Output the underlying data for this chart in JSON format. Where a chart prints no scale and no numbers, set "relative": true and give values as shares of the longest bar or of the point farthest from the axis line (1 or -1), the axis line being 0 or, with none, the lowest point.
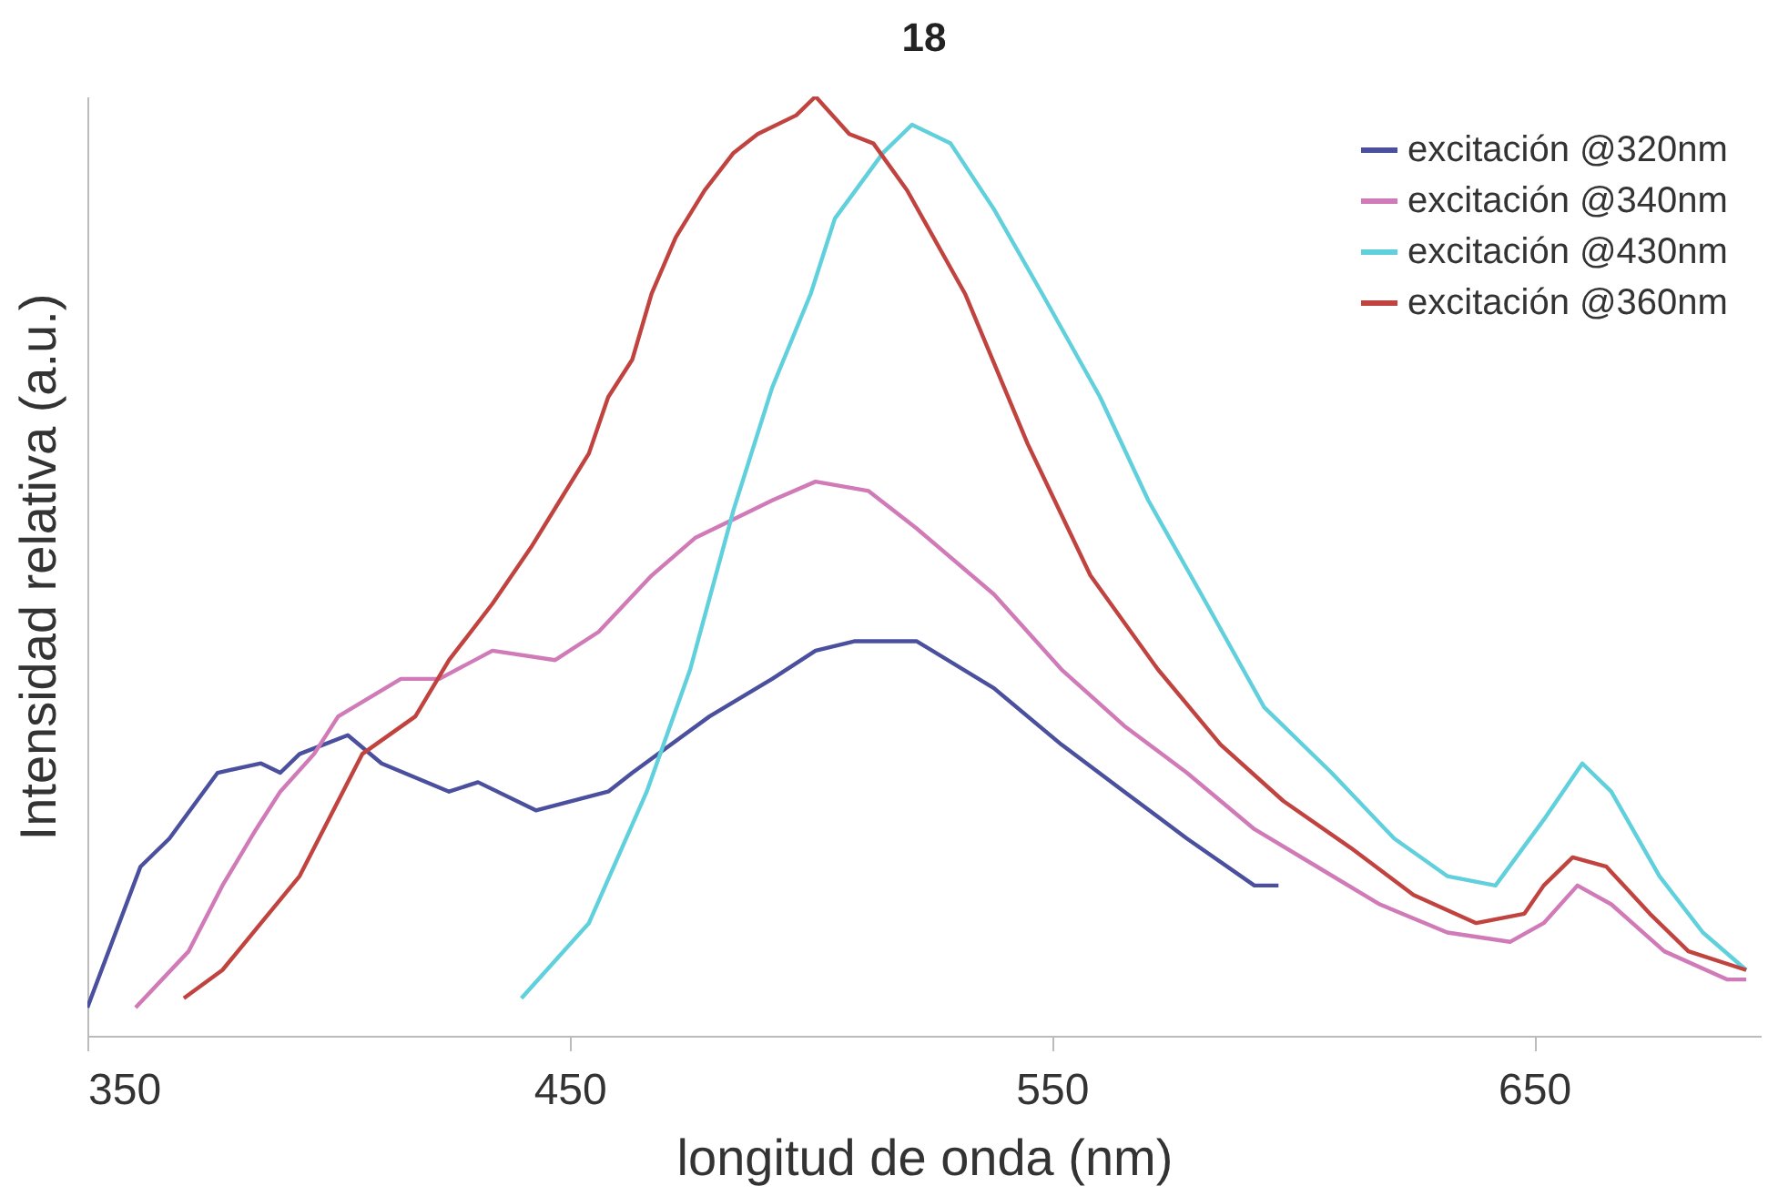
{
  "chart_data": {
    "type": "line",
    "title": "18",
    "xlabel": "longitud de onda (nm)",
    "ylabel": "Intensidad relativa (a.u.)",
    "relative": true,
    "xlim": [
      350,
      697
    ],
    "xticks": [
      350,
      450,
      550,
      650
    ],
    "grid": false,
    "legend": "top right",
    "marker": "none",
    "line_style": "solid",
    "series": [
      {
        "name": "excitación @320nm",
        "color": "#4a4f9e",
        "x": [
          350,
          361,
          367,
          377,
          386,
          390,
          394,
          404,
          411,
          425,
          431,
          443,
          458,
          463,
          479,
          492,
          501,
          509,
          522,
          538,
          552,
          565,
          578,
          592,
          597
        ],
        "values": [
          0.03,
          0.18,
          0.21,
          0.28,
          0.29,
          0.28,
          0.3,
          0.32,
          0.29,
          0.26,
          0.27,
          0.24,
          0.26,
          0.28,
          0.34,
          0.38,
          0.41,
          0.42,
          0.42,
          0.37,
          0.31,
          0.26,
          0.21,
          0.16,
          0.16
        ]
      },
      {
        "name": "excitación @340nm",
        "color": "#d07ab8",
        "x": [
          360,
          371,
          378,
          385,
          390,
          397,
          402,
          415,
          423,
          434,
          447,
          456,
          467,
          476,
          484,
          492,
          501,
          512,
          522,
          538,
          552,
          565,
          578,
          592,
          605,
          618,
          632,
          645,
          652,
          659,
          666,
          677,
          690,
          694
        ],
        "values": [
          0.03,
          0.09,
          0.16,
          0.22,
          0.26,
          0.3,
          0.34,
          0.38,
          0.38,
          0.41,
          0.4,
          0.43,
          0.49,
          0.53,
          0.55,
          0.57,
          0.59,
          0.58,
          0.54,
          0.47,
          0.39,
          0.33,
          0.28,
          0.22,
          0.18,
          0.14,
          0.11,
          0.1,
          0.12,
          0.16,
          0.14,
          0.09,
          0.06,
          0.06
        ]
      },
      {
        "name": "excitación @430nm",
        "color": "#5fd0dc",
        "x": [
          440,
          454,
          466,
          475,
          484,
          492,
          500,
          505,
          515,
          521,
          529,
          538,
          548,
          560,
          570,
          581,
          594,
          608,
          621,
          632,
          642,
          652,
          660,
          666,
          676,
          685,
          694
        ],
        "values": [
          0.04,
          0.12,
          0.26,
          0.39,
          0.56,
          0.69,
          0.79,
          0.87,
          0.94,
          0.97,
          0.95,
          0.88,
          0.79,
          0.68,
          0.57,
          0.47,
          0.35,
          0.28,
          0.21,
          0.17,
          0.16,
          0.23,
          0.29,
          0.26,
          0.17,
          0.11,
          0.07
        ]
      },
      {
        "name": "excitación @360nm",
        "color": "#c0433f",
        "x": [
          370,
          378,
          386,
          394,
          402,
          407,
          418,
          425,
          434,
          442,
          448,
          454,
          458,
          463,
          467,
          472,
          478,
          484,
          489,
          497,
          501,
          508,
          513,
          520,
          532,
          545,
          558,
          572,
          585,
          598,
          612,
          625,
          638,
          648,
          652,
          658,
          665,
          674,
          682,
          694
        ],
        "values": [
          0.04,
          0.07,
          0.12,
          0.17,
          0.25,
          0.3,
          0.34,
          0.4,
          0.46,
          0.52,
          0.57,
          0.62,
          0.68,
          0.72,
          0.79,
          0.85,
          0.9,
          0.94,
          0.96,
          0.98,
          1.0,
          0.96,
          0.95,
          0.9,
          0.79,
          0.63,
          0.49,
          0.39,
          0.31,
          0.25,
          0.2,
          0.15,
          0.12,
          0.13,
          0.16,
          0.19,
          0.18,
          0.13,
          0.09,
          0.07
        ]
      }
    ]
  }
}
